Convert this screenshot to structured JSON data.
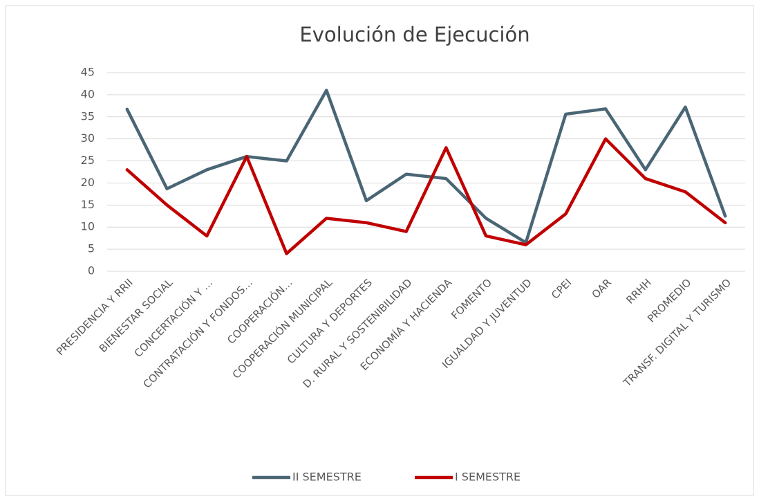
{
  "chart_data": {
    "type": "line",
    "title": "Evolución de Ejecución",
    "categories": [
      "PRESIDENCIA Y RRII",
      "BIENESTAR SOCIAL",
      "CONCERTACIÓN Y …",
      "CONTRATACIÓN Y FONDOS…",
      "COOPERACIÓN…",
      "COOPERACIÓN MUNICIPAL",
      "CULTURA Y DEPORTES",
      "D. RURAL Y SOSTENIBILIDAD",
      "ECONOMÍA Y HACIENDA",
      "FOMENTO",
      "IGUALDAD Y JUVENTUD",
      "CPEI",
      "OAR",
      "RRHH",
      "PROMEDIO",
      "TRANSF. DIGITAL Y TURISMO"
    ],
    "series": [
      {
        "name": "II SEMESTRE",
        "color": "#4a6675",
        "values": [
          36.7,
          18.7,
          23,
          26,
          25,
          41,
          16,
          22,
          21,
          12,
          6.5,
          35.6,
          36.8,
          23,
          37.2,
          12.5
        ]
      },
      {
        "name": "I SEMESTRE",
        "color": "#c00000",
        "values": [
          23,
          15,
          8,
          26,
          4,
          12,
          11,
          9,
          28,
          8,
          6,
          13,
          30,
          21,
          18,
          11
        ]
      }
    ],
    "ylim": [
      0,
      45
    ],
    "yticks": [
      0,
      5,
      10,
      15,
      20,
      25,
      30,
      35,
      40,
      45
    ],
    "grid": true,
    "legend": "bottom"
  }
}
